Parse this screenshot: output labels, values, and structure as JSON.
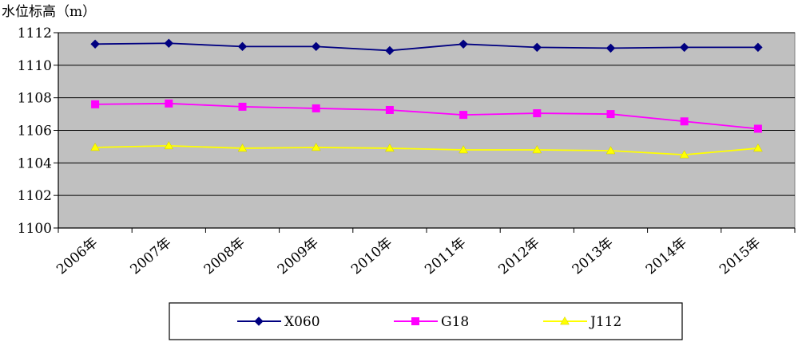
{
  "chart_data": {
    "type": "line",
    "title": "",
    "ylabel": "水位标高（m）",
    "xlabel": "",
    "categories": [
      "2006年",
      "2007年",
      "2008年",
      "2009年",
      "2010年",
      "2011年",
      "2012年",
      "2013年",
      "2014年",
      "2015年"
    ],
    "ylim": [
      1100,
      1112
    ],
    "yticks": [
      1100,
      1102,
      1104,
      1106,
      1108,
      1110,
      1112
    ],
    "grid": true,
    "plot_background": "#c0c0c0",
    "legend_position": "bottom",
    "series": [
      {
        "name": "X060",
        "color": "#000080",
        "marker": "diamond",
        "values": [
          1111.3,
          1111.35,
          1111.15,
          1111.15,
          1110.9,
          1111.3,
          1111.1,
          1111.05,
          1111.1,
          1111.1
        ]
      },
      {
        "name": "G18",
        "color": "#ff00ff",
        "marker": "square",
        "values": [
          1107.6,
          1107.65,
          1107.45,
          1107.35,
          1107.25,
          1106.95,
          1107.05,
          1107.0,
          1106.55,
          1106.1
        ]
      },
      {
        "name": "J112",
        "color": "#ffff00",
        "marker": "triangle",
        "values": [
          1104.95,
          1105.05,
          1104.9,
          1104.95,
          1104.9,
          1104.8,
          1104.8,
          1104.75,
          1104.5,
          1104.9
        ]
      }
    ]
  }
}
